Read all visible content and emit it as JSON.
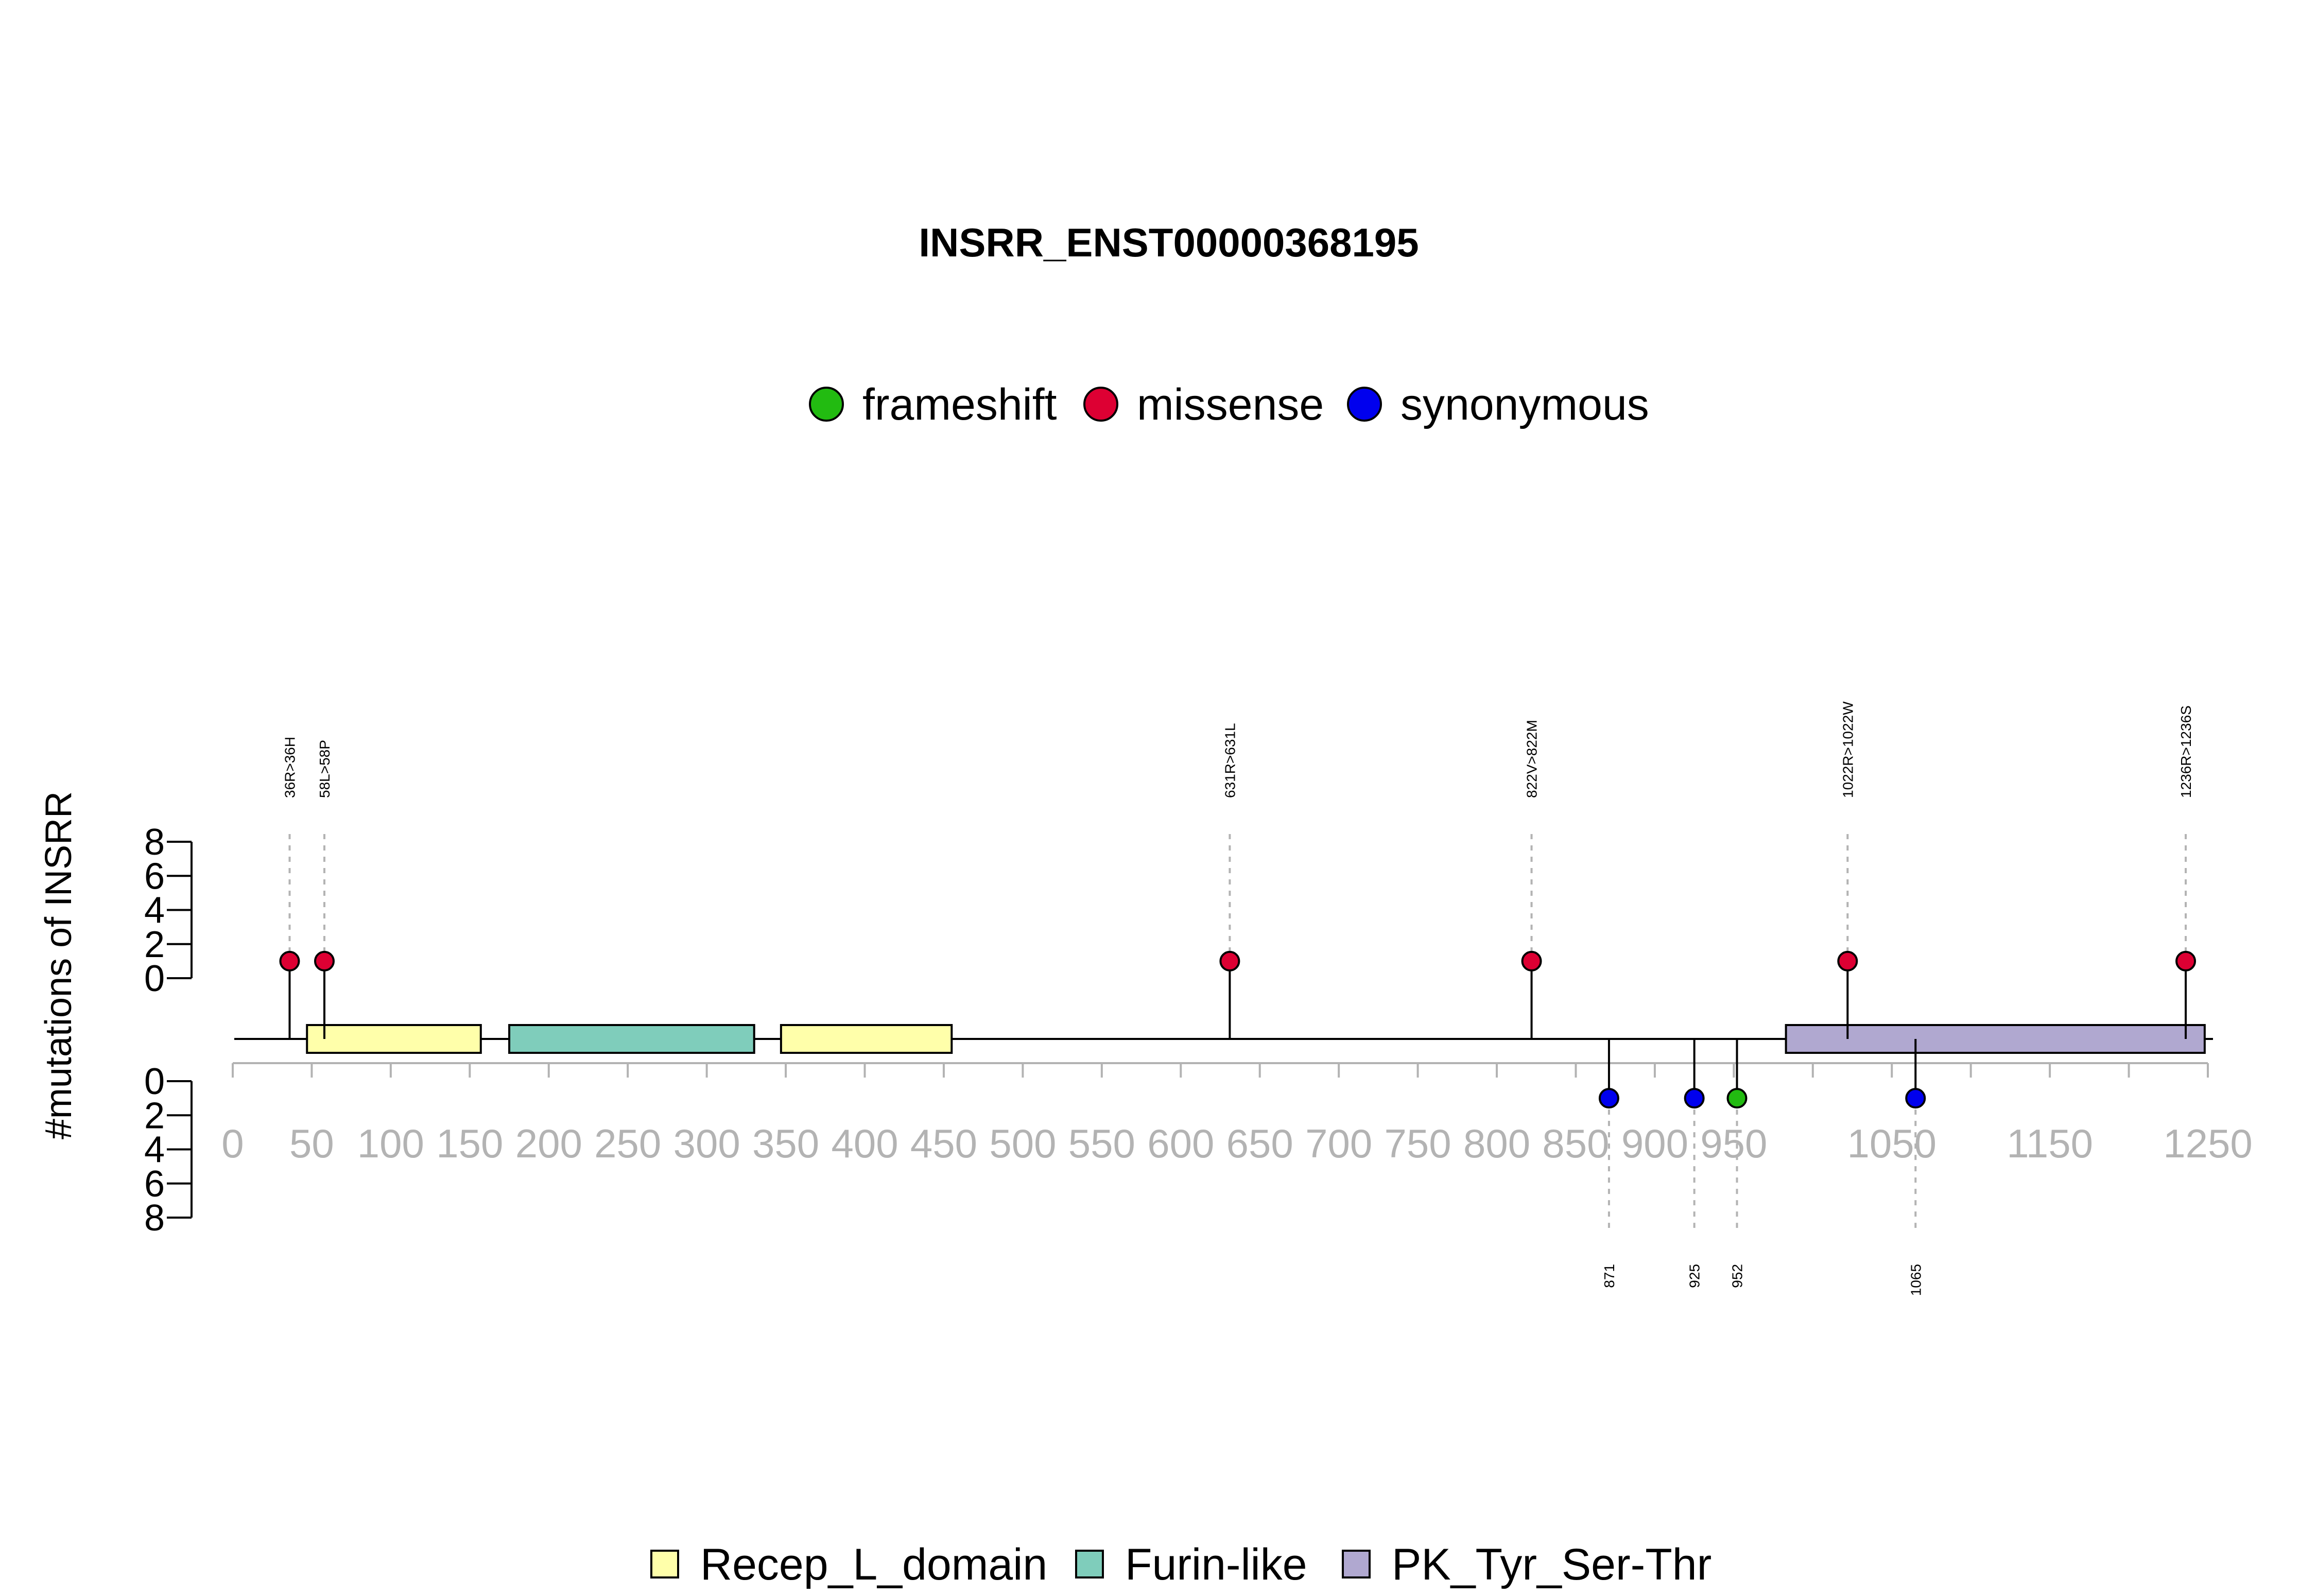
{
  "chart_data": {
    "type": "lollipop",
    "title": "INSRR_ENST00000368195",
    "ylabel": "#mutations of INSRR",
    "xlim": [
      0,
      1250
    ],
    "ylim": [
      0,
      8
    ],
    "yticks": [
      "0",
      "2",
      "4",
      "6",
      "8"
    ],
    "x_ticks": [
      0,
      50,
      100,
      150,
      200,
      250,
      300,
      350,
      400,
      450,
      500,
      550,
      600,
      650,
      700,
      750,
      800,
      850,
      900,
      950,
      1000,
      1050,
      1100,
      1150,
      1200,
      1250
    ],
    "x_tick_labels": [
      {
        "value": 0,
        "label": "0"
      },
      {
        "value": 50,
        "label": "50"
      },
      {
        "value": 100,
        "label": "100"
      },
      {
        "value": 150,
        "label": "150"
      },
      {
        "value": 200,
        "label": "200"
      },
      {
        "value": 250,
        "label": "250"
      },
      {
        "value": 300,
        "label": "300"
      },
      {
        "value": 350,
        "label": "350"
      },
      {
        "value": 400,
        "label": "400"
      },
      {
        "value": 450,
        "label": "450"
      },
      {
        "value": 500,
        "label": "500"
      },
      {
        "value": 550,
        "label": "550"
      },
      {
        "value": 600,
        "label": "600"
      },
      {
        "value": 650,
        "label": "650"
      },
      {
        "value": 700,
        "label": "700"
      },
      {
        "value": 750,
        "label": "750"
      },
      {
        "value": 800,
        "label": "800"
      },
      {
        "value": 850,
        "label": "850"
      },
      {
        "value": 900,
        "label": "900"
      },
      {
        "value": 950,
        "label": "950"
      },
      {
        "value": 1050,
        "label": "1050"
      },
      {
        "value": 1150,
        "label": "1150"
      },
      {
        "value": 1250,
        "label": "1250"
      }
    ],
    "mutation_types": [
      {
        "name": "frameshift",
        "color": "#22bb11"
      },
      {
        "name": "missense",
        "color": "#dd0033"
      },
      {
        "name": "synonymous",
        "color": "#0000ee"
      }
    ],
    "domains": [
      {
        "name": "Recep_L_domain",
        "start": 47,
        "end": 157,
        "color": "#ffffaa"
      },
      {
        "name": "Furin-like",
        "start": 175,
        "end": 330,
        "color": "#7fcdbb"
      },
      {
        "name": "Recep_L_domain",
        "start": 347,
        "end": 455,
        "color": "#ffffaa"
      },
      {
        "name": "PK_Tyr_Ser-Thr",
        "start": 983,
        "end": 1248,
        "color": "#b0a8d0"
      }
    ],
    "domain_legend": [
      {
        "name": "Recep_L_domain",
        "color": "#ffffaa"
      },
      {
        "name": "Furin-like",
        "color": "#7fcdbb"
      },
      {
        "name": "PK_Tyr_Ser-Thr",
        "color": "#b0a8d0"
      }
    ],
    "mutations_top": [
      {
        "position": 36,
        "label": "36R>36H",
        "type": "missense",
        "count": 1
      },
      {
        "position": 58,
        "label": "58L>58P",
        "type": "missense",
        "count": 1
      },
      {
        "position": 631,
        "label": "631R>631L",
        "type": "missense",
        "count": 1
      },
      {
        "position": 822,
        "label": "822V>822M",
        "type": "missense",
        "count": 1
      },
      {
        "position": 1022,
        "label": "1022R>1022W",
        "type": "missense",
        "count": 1
      },
      {
        "position": 1236,
        "label": "1236R>1236S",
        "type": "missense",
        "count": 1
      }
    ],
    "mutations_bottom": [
      {
        "position": 871,
        "label": "871",
        "type": "synonymous",
        "count": 1
      },
      {
        "position": 925,
        "label": "925",
        "type": "synonymous",
        "count": 1
      },
      {
        "position": 952,
        "label": "952",
        "type": "frameshift",
        "count": 1
      },
      {
        "position": 1065,
        "label": "1065",
        "type": "synonymous",
        "count": 1
      }
    ]
  }
}
